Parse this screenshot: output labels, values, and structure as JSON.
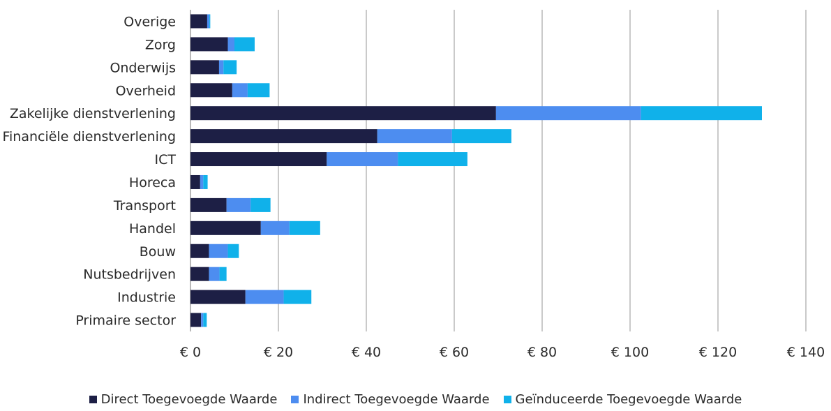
{
  "chart_data": {
    "type": "bar",
    "orientation": "horizontal",
    "stacked": true,
    "categories": [
      "Overige",
      "Zorg",
      "Onderwijs",
      "Overheid",
      "Zakelijke dienstverlening",
      "Financiële dienstverlening",
      "ICT",
      "Horeca",
      "Transport",
      "Handel",
      "Bouw",
      "Nutsbedrijven",
      "Industrie",
      "Primaire sector"
    ],
    "series": [
      {
        "name": "Direct Toegevoegde Waarde",
        "color": "#1d1f45",
        "values": [
          3.8,
          8.5,
          6.5,
          9.5,
          69.5,
          42.5,
          31,
          2.2,
          8.2,
          16,
          4.2,
          4.2,
          12.5,
          2.4
        ]
      },
      {
        "name": "Indirect Toegevoegde Waarde",
        "color": "#4d8df0",
        "values": [
          0.5,
          1.5,
          1.0,
          3.5,
          33.0,
          17.0,
          16.2,
          0.7,
          5.5,
          6.5,
          4.3,
          2.4,
          8.7,
          0.5
        ]
      },
      {
        "name": "Geïnduceerde Toegevoegde Waarde",
        "color": "#10b1ea",
        "values": [
          0.2,
          4.6,
          3.0,
          5.0,
          27.5,
          13.5,
          15.8,
          1.0,
          4.5,
          7.0,
          2.5,
          1.6,
          6.3,
          0.8
        ]
      }
    ],
    "x_ticks": [
      "€ 0",
      "€ 20",
      "€ 40",
      "€ 60",
      "€ 80",
      "€ 100",
      "€ 120",
      "€ 140"
    ],
    "xlim": [
      0,
      140
    ],
    "grid": "vertical",
    "legend_position": "bottom"
  }
}
